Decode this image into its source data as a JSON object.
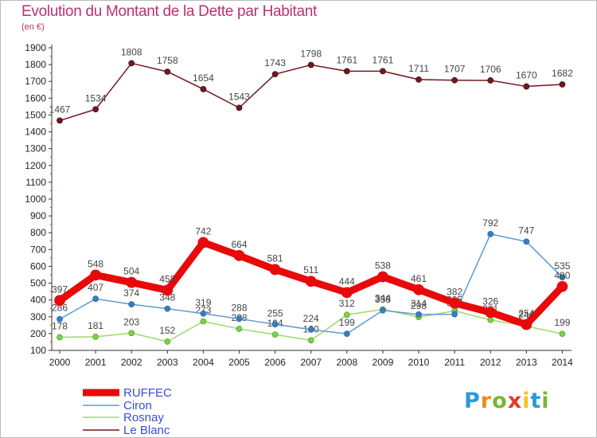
{
  "title": "Evolution du Montant de la Dette par Habitant",
  "subtitle": "(en €)",
  "logo": {
    "letters": [
      "P",
      "r",
      "o",
      "x",
      "i",
      "t",
      "i"
    ],
    "colors": [
      "#2a9ad8",
      "#f08a1c",
      "#7ab630",
      "#e23a2f",
      "#f5c518",
      "#2a9ad8",
      "#7ab630"
    ]
  },
  "chart_data": {
    "type": "line",
    "title": "Evolution du Montant de la Dette par Habitant",
    "subtitle": "(en €)",
    "x": [
      "2000",
      "2001",
      "2002",
      "2003",
      "2004",
      "2005",
      "2006",
      "2007",
      "2008",
      "2009",
      "2010",
      "2011",
      "2012",
      "2013",
      "2014"
    ],
    "ylim": [
      100,
      1900
    ],
    "yticks": [
      100,
      200,
      300,
      400,
      500,
      600,
      700,
      800,
      900,
      1000,
      1100,
      1200,
      1300,
      1400,
      1500,
      1600,
      1700,
      1800,
      1900
    ],
    "grid": false,
    "legend_position": "bottom-left",
    "series": [
      {
        "name": "Le Blanc",
        "color": "#6e1a1f",
        "values": [
          1467,
          1534,
          1808,
          1758,
          1654,
          1543,
          1743,
          1798,
          1761,
          1761,
          1711,
          1707,
          1706,
          1670,
          1682
        ]
      },
      {
        "name": "Rosnay",
        "color": "#9fd96a",
        "values": [
          178,
          181,
          203,
          152,
          273,
          228,
          194,
          160,
          312,
          344,
          298,
          335,
          281,
          244,
          199
        ]
      },
      {
        "name": "Ciron",
        "color": "#5b9bd5",
        "values": [
          286,
          407,
          374,
          348,
          319,
          288,
          255,
          224,
          199,
          338,
          314,
          315,
          792,
          747,
          535
        ]
      },
      {
        "name": "RUFFEC",
        "color": "#e8090a",
        "values": [
          397,
          548,
          504,
          458,
          742,
          664,
          581,
          511,
          444,
          538,
          461,
          382,
          326,
          254,
          480
        ]
      }
    ],
    "legend": [
      "RUFFEC",
      "Ciron",
      "Rosnay",
      "Le Blanc"
    ]
  }
}
